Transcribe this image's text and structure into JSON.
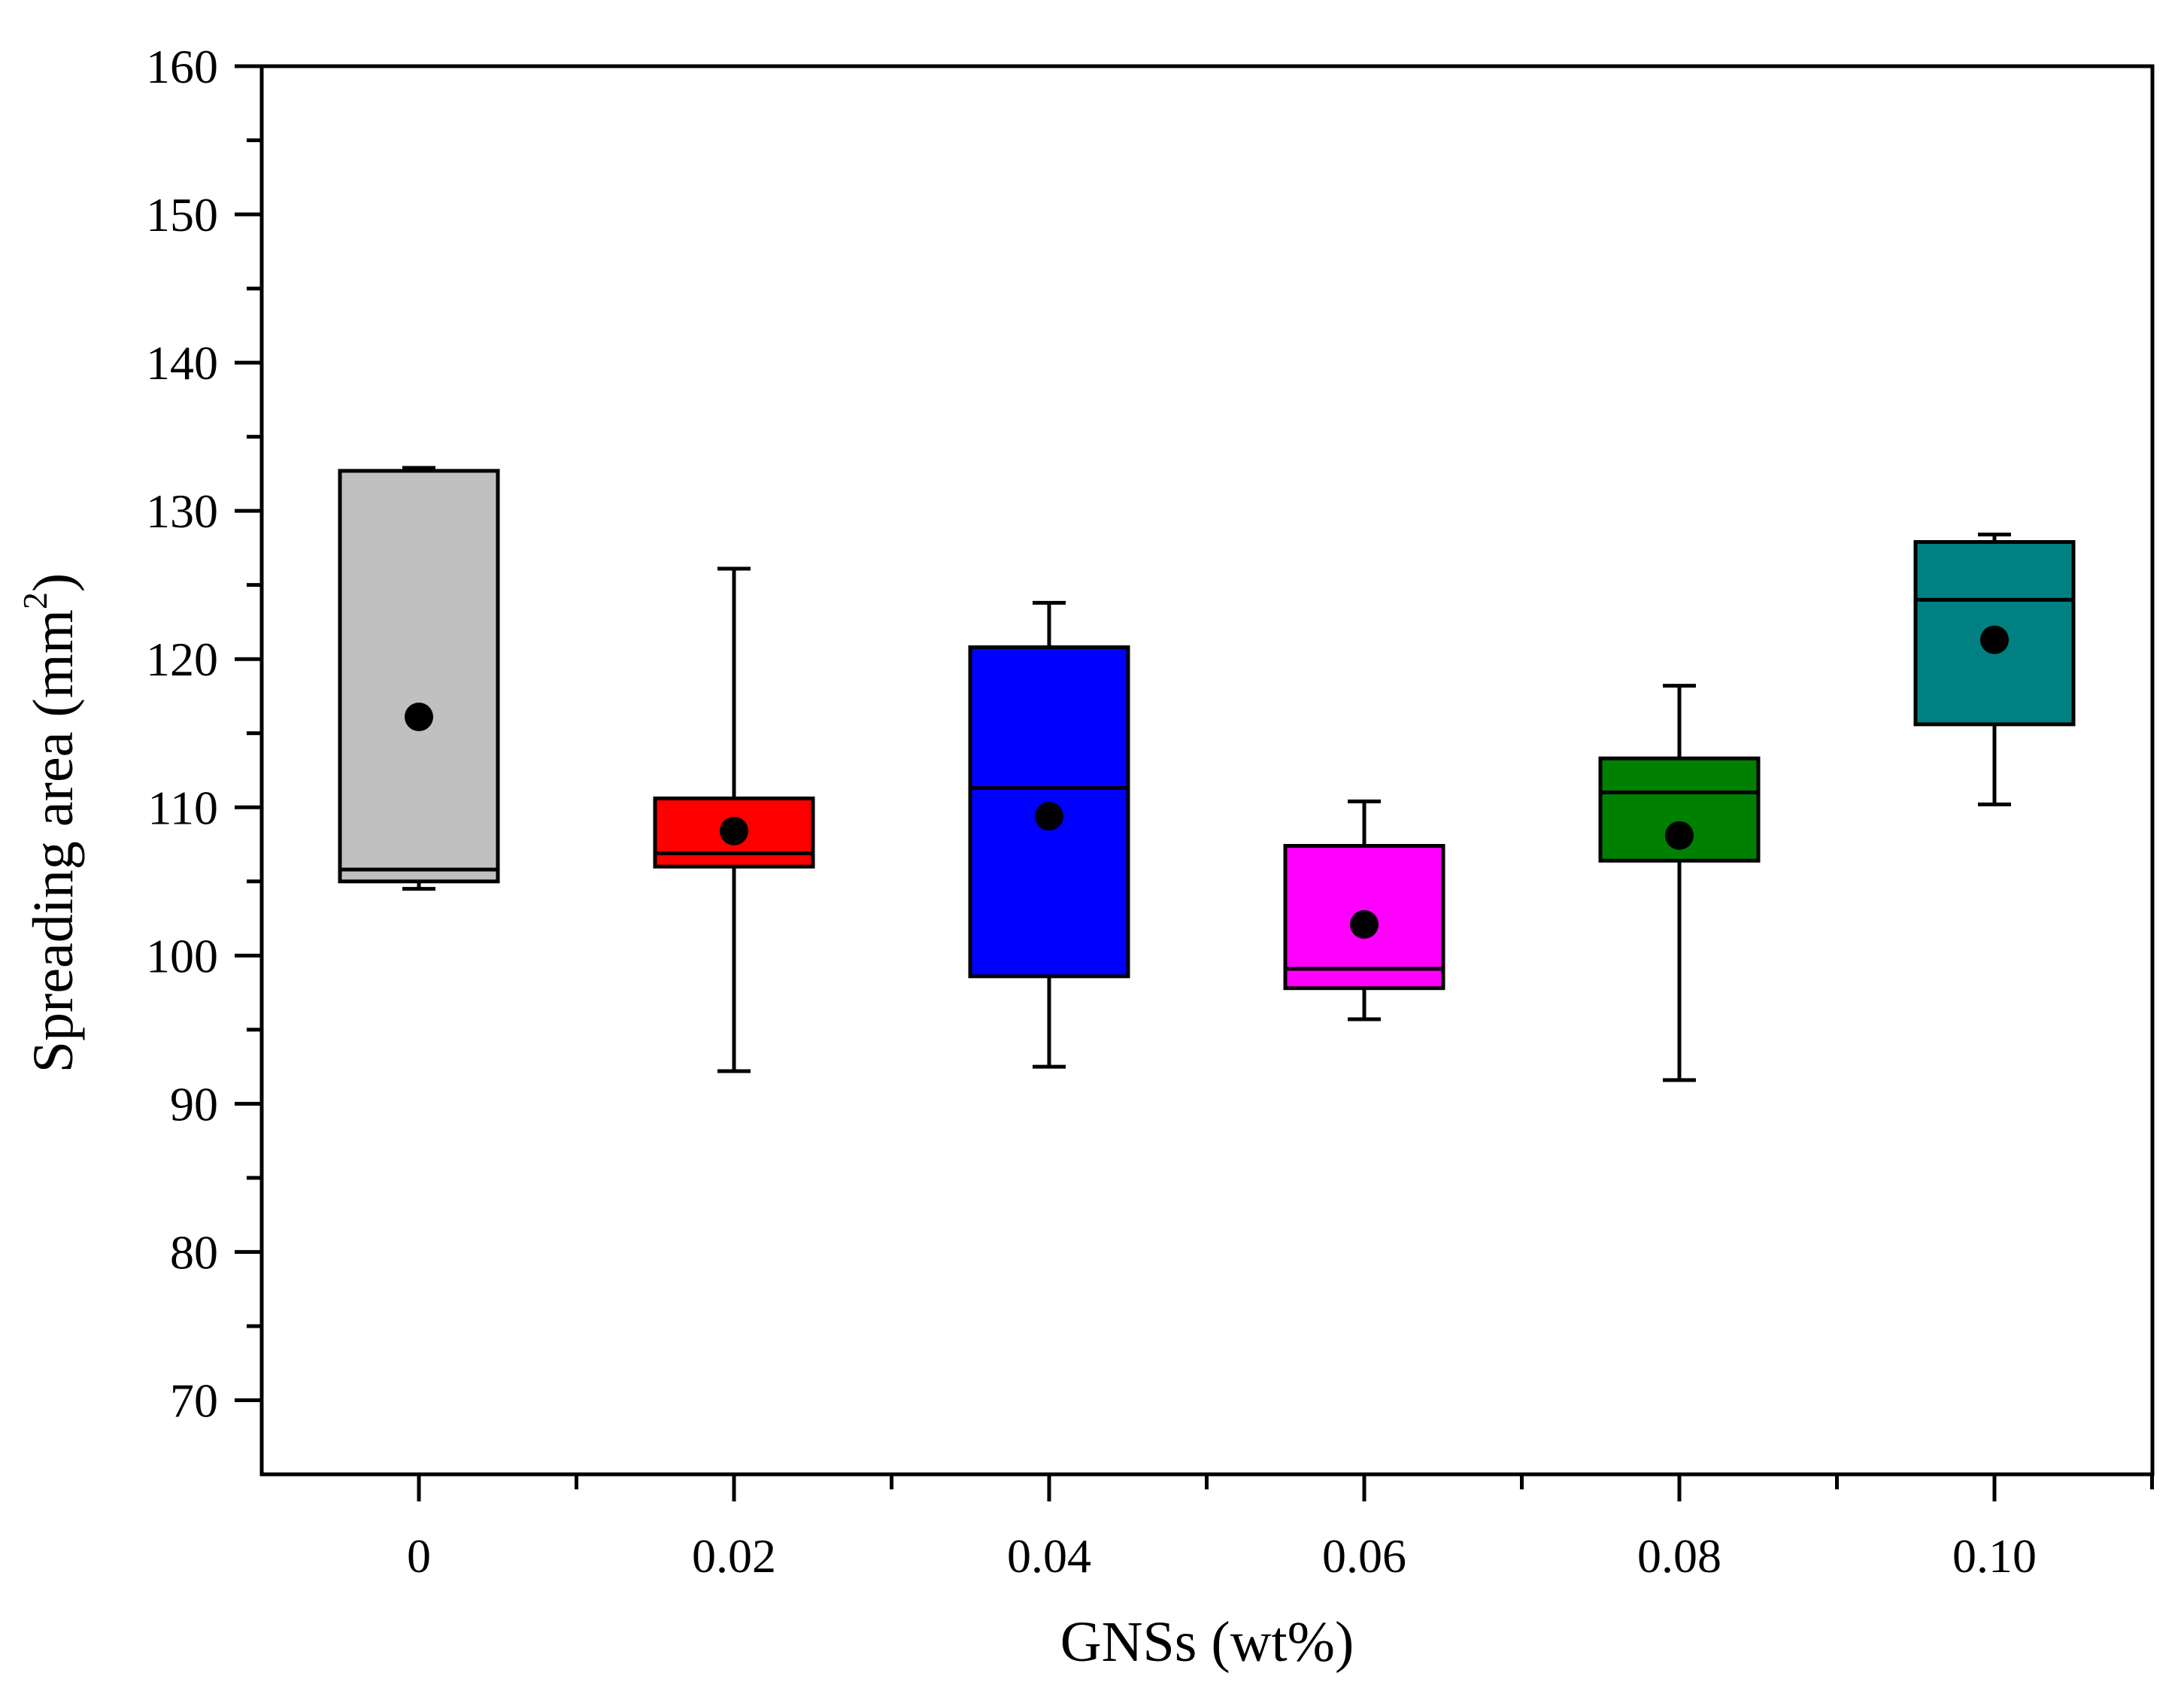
{
  "chart_data": {
    "type": "box",
    "xlabel": "GNSs (wt%)",
    "ylabel": {
      "prefix": "Spreading area (mm",
      "superscript": "2",
      "suffix": ")"
    },
    "ylim": [
      65,
      160
    ],
    "yticks_major": [
      70,
      80,
      90,
      100,
      110,
      120,
      130,
      140,
      150,
      160
    ],
    "yticks_minor": [
      75,
      85,
      95,
      105,
      115,
      125,
      135,
      145,
      155
    ],
    "categories": [
      "0",
      "0.02",
      "0.04",
      "0.06",
      "0.08",
      "0.10"
    ],
    "boxes": [
      {
        "name": "0",
        "whisker_low": 104.5,
        "q1": 105.0,
        "median": 105.8,
        "q3": 132.7,
        "whisker_high": 132.9,
        "mean": 116.1,
        "color": "#c0c0c0"
      },
      {
        "name": "0.02",
        "whisker_low": 92.2,
        "q1": 106.0,
        "median": 106.9,
        "q3": 110.6,
        "whisker_high": 126.1,
        "mean": 108.4,
        "color": "#ff0000"
      },
      {
        "name": "0.04",
        "whisker_low": 92.5,
        "q1": 98.6,
        "median": 111.3,
        "q3": 120.8,
        "whisker_high": 123.8,
        "mean": 109.4,
        "color": "#0000ff"
      },
      {
        "name": "0.06",
        "whisker_low": 95.7,
        "q1": 97.8,
        "median": 99.1,
        "q3": 107.4,
        "whisker_high": 110.4,
        "mean": 102.1,
        "color": "#ff00ff"
      },
      {
        "name": "0.08",
        "whisker_low": 91.6,
        "q1": 106.4,
        "median": 111.0,
        "q3": 113.3,
        "whisker_high": 118.2,
        "mean": 108.1,
        "color": "#008000"
      },
      {
        "name": "0.10",
        "whisker_low": 110.2,
        "q1": 115.6,
        "median": 124.0,
        "q3": 127.9,
        "whisker_high": 128.4,
        "mean": 121.3,
        "color": "#008080"
      }
    ]
  }
}
